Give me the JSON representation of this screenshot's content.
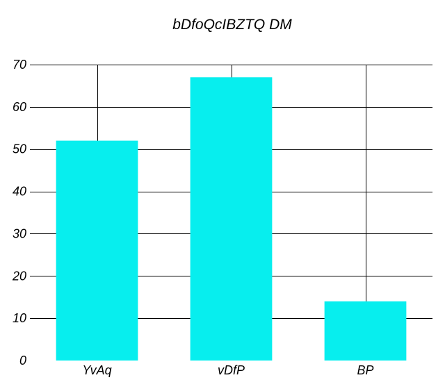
{
  "chart_data": {
    "type": "bar",
    "title": "bDfoQcIBZTQ DM",
    "categories": [
      "YvAq",
      "vDfP",
      "BP"
    ],
    "values": [
      52,
      67,
      14
    ],
    "yticks": [
      0,
      10,
      20,
      30,
      40,
      50,
      60,
      70
    ],
    "ylim": [
      0,
      70
    ],
    "grid": true,
    "bar_color": "#07eeee",
    "xlabel": "",
    "ylabel": ""
  }
}
